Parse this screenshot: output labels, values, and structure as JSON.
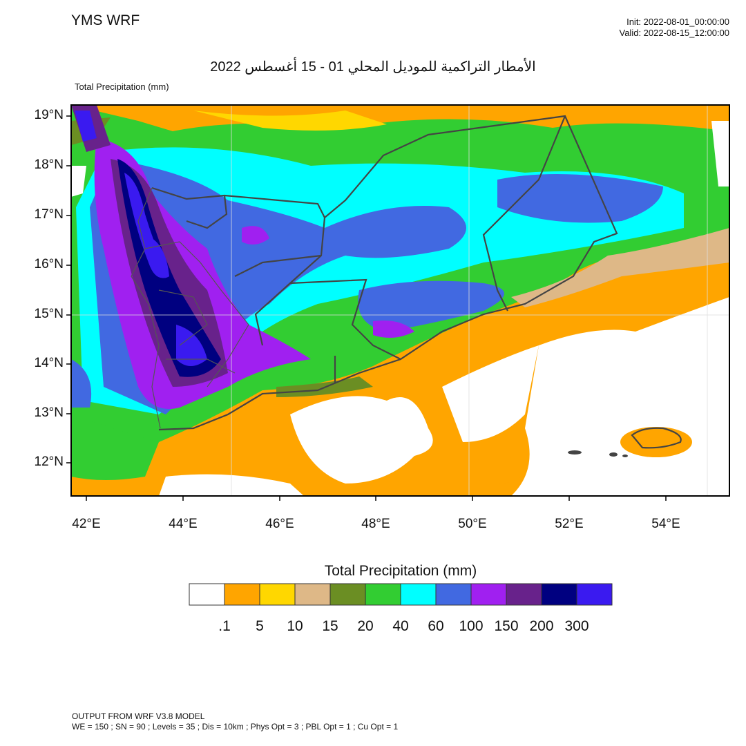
{
  "header": {
    "brand": "YMS WRF",
    "init": "Init: 2022-08-01_00:00:00",
    "valid": "Valid: 2022-08-15_12:00:00",
    "title": "الأمطار التراكمية للموديل المحلي 01 - 15 أغسطس 2022",
    "subtitle": "Total Precipitation   (mm)"
  },
  "map": {
    "lat_labels": [
      "19°N",
      "18°N",
      "17°N",
      "16°N",
      "15°N",
      "14°N",
      "13°N",
      "12°N"
    ],
    "lon_labels": [
      "42°E",
      "44°E",
      "46°E",
      "48°E",
      "50°E",
      "52°E",
      "54°E"
    ]
  },
  "colorbar": {
    "title": "Total Precipitation  (mm)",
    "colors": [
      "#FFFFFF",
      "#FFA500",
      "#FFD700",
      "#DEB887",
      "#6B8E23",
      "#32CD32",
      "#00FFFF",
      "#4169E1",
      "#A020F0",
      "#68228B",
      "#000080",
      "#3A1AF0"
    ],
    "labels": [
      ".1",
      "5",
      "10",
      "15",
      "20",
      "40",
      "60",
      "100",
      "150",
      "200",
      "300"
    ]
  },
  "footer": {
    "line1": "OUTPUT FROM WRF V3.8 MODEL",
    "line2": "WE = 150 ; SN = 90 ; Levels = 35 ; Dis = 10km ; Phys Opt = 3 ; PBL Opt = 1 ; Cu Opt = 1"
  }
}
